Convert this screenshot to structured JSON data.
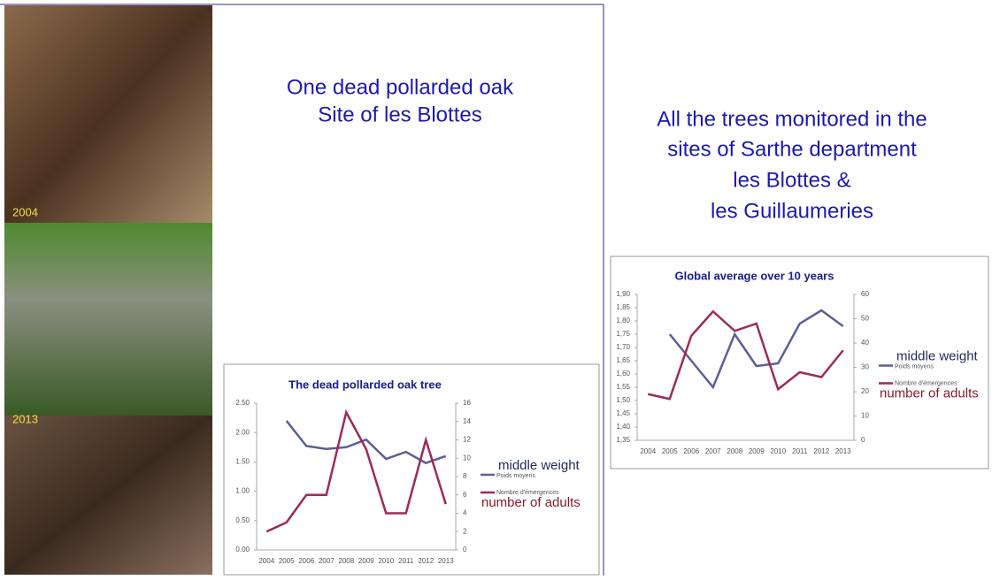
{
  "left_title": [
    "One dead pollarded oak",
    "Site of les Blottes"
  ],
  "right_title": [
    "All the trees monitored in the",
    "sites of Sarthe department",
    "les Blottes &",
    "les Guillaumeries"
  ],
  "photo_labels": [
    "2004",
    "2013"
  ],
  "chart_data": [
    {
      "type": "line",
      "title": "The dead pollarded oak tree",
      "categories": [
        "2004",
        "2005",
        "2006",
        "2007",
        "2008",
        "2009",
        "2010",
        "2011",
        "2012",
        "2013"
      ],
      "series": [
        {
          "name": "Poids moyens",
          "color": "#5b5f97",
          "values": [
            null,
            2.2,
            1.77,
            1.72,
            1.75,
            1.88,
            1.55,
            1.67,
            1.48,
            1.6
          ]
        },
        {
          "name": "Nombre d'émergences",
          "color": "#9e2a5a",
          "axis": "y2",
          "values": [
            2,
            3,
            6,
            6,
            15,
            11,
            4,
            4,
            12,
            5
          ]
        }
      ],
      "annotations": [
        "middle weight",
        "number of adults"
      ],
      "ylim": [
        0,
        2.5
      ],
      "yticks": [
        {
          "value": 0,
          "label": "0.00"
        },
        {
          "value": 0.5,
          "label": "0.50"
        },
        {
          "value": 1,
          "label": "1.00"
        },
        {
          "value": 1.5,
          "label": "1.50"
        },
        {
          "value": 2,
          "label": "2.00"
        },
        {
          "value": 2.5,
          "label": "2.50"
        }
      ],
      "y2lim": [
        0,
        16
      ],
      "y2ticks": [
        0,
        2,
        4,
        6,
        8,
        10,
        12,
        14,
        16
      ]
    },
    {
      "type": "line",
      "title": "Global average over 10 years",
      "categories": [
        "2004",
        "2005",
        "2006",
        "2007",
        "2008",
        "2009",
        "2010",
        "2011",
        "2012",
        "2013"
      ],
      "series": [
        {
          "name": "Poids moyens",
          "color": "#5b5f97",
          "values": [
            null,
            1.75,
            1.65,
            1.55,
            1.75,
            1.63,
            1.64,
            1.79,
            1.84,
            1.78
          ]
        },
        {
          "name": "Nombre d'émergences",
          "color": "#9e2a5a",
          "axis": "y2",
          "values": [
            19,
            17,
            43,
            53,
            45,
            48,
            21,
            28,
            26,
            37
          ]
        }
      ],
      "annotations": [
        "middle weight",
        "number of adults"
      ],
      "ylim": [
        1.35,
        1.9
      ],
      "yticks": [
        {
          "value": 1.35,
          "label": "1,35"
        },
        {
          "value": 1.4,
          "label": "1,40"
        },
        {
          "value": 1.45,
          "label": "1,45"
        },
        {
          "value": 1.5,
          "label": "1,50"
        },
        {
          "value": 1.55,
          "label": "1,55"
        },
        {
          "value": 1.6,
          "label": "1,60"
        },
        {
          "value": 1.65,
          "label": "1,65"
        },
        {
          "value": 1.7,
          "label": "1,70"
        },
        {
          "value": 1.75,
          "label": "1,75"
        },
        {
          "value": 1.8,
          "label": "1,80"
        },
        {
          "value": 1.85,
          "label": "1,85"
        },
        {
          "value": 1.9,
          "label": "1,90"
        }
      ],
      "y2lim": [
        0,
        60
      ],
      "y2ticks": [
        0,
        10,
        20,
        30,
        40,
        50,
        60
      ]
    }
  ]
}
